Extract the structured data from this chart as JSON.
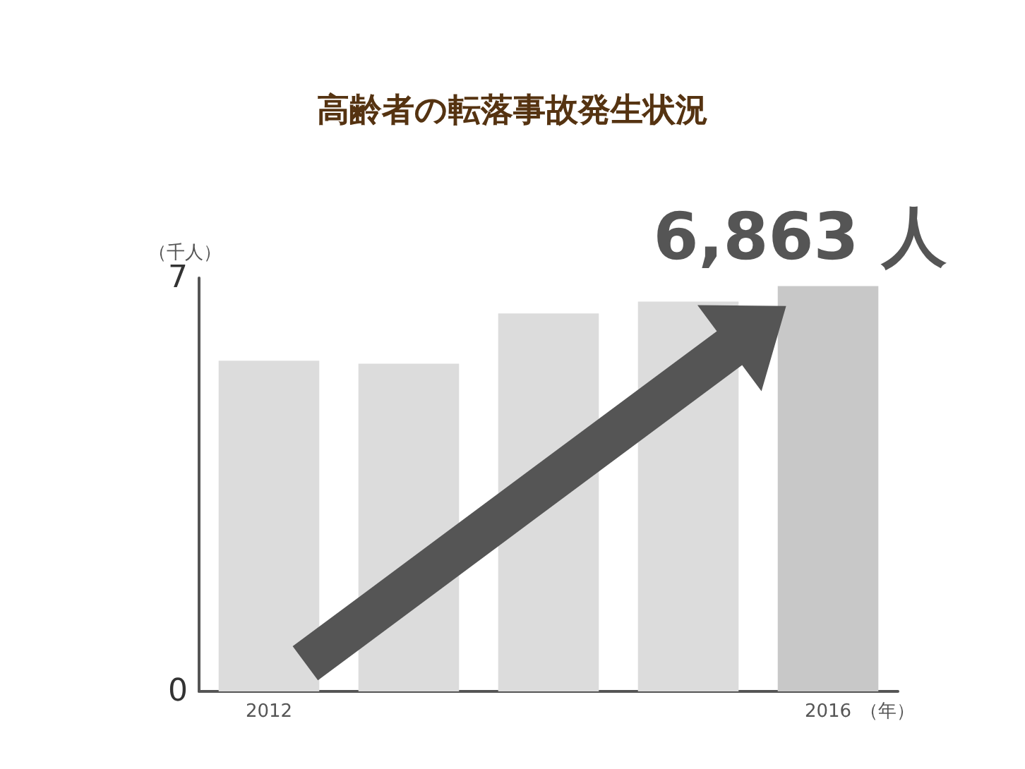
{
  "chart_data": {
    "type": "bar",
    "title": "高齢者の転落事故発生状況",
    "xlabel": "（年）",
    "ylabel": "（千人）",
    "categories": [
      "2012",
      null,
      null,
      null,
      "2016"
    ],
    "values": [
      5.6,
      5.55,
      6.4,
      6.6,
      6.863
    ],
    "colors": [
      "#dcdcdc",
      "#dcdcdc",
      "#dcdcdc",
      "#dcdcdc",
      "#c8c8c8"
    ],
    "ylim": [
      0,
      7
    ],
    "yticks": [
      0,
      7
    ],
    "annotations": [
      {
        "text": "6,863 人",
        "x": "2016",
        "y": 6.863
      }
    ]
  }
}
